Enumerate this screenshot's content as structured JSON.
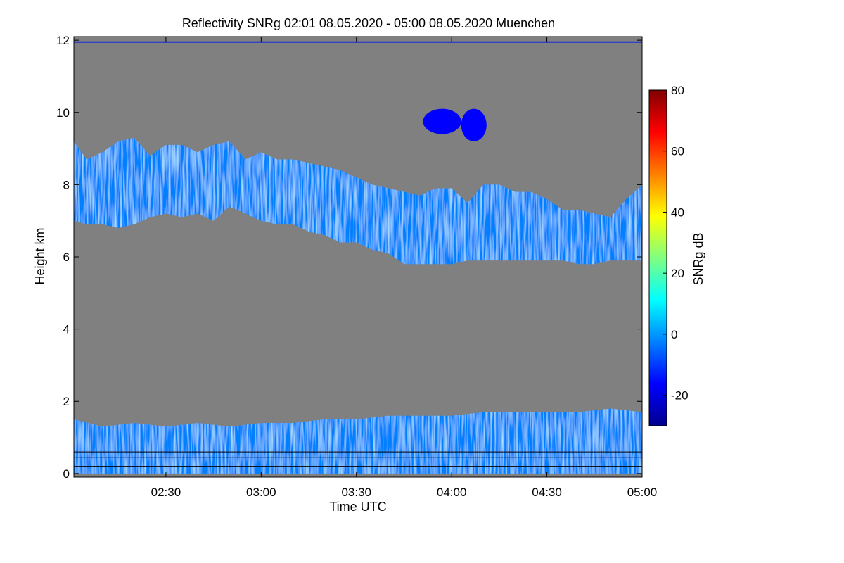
{
  "chart_data": {
    "type": "heatmap",
    "title": "Reflectivity SNRg   02:01 08.05.2020 - 05:00 08.05.2020 Muenchen",
    "xlabel": "Time UTC",
    "ylabel": "Height km",
    "x_range": [
      "02:01",
      "05:00"
    ],
    "xlim_minutes": [
      121,
      300
    ],
    "x_ticks": [
      {
        "label": "02:30",
        "minutes": 150
      },
      {
        "label": "03:00",
        "minutes": 180
      },
      {
        "label": "03:30",
        "minutes": 210
      },
      {
        "label": "04:00",
        "minutes": 240
      },
      {
        "label": "04:30",
        "minutes": 270
      },
      {
        "label": "05:00",
        "minutes": 300
      }
    ],
    "ylim": [
      -0.1,
      12.1
    ],
    "y_ticks": [
      0,
      2,
      4,
      6,
      8,
      10,
      12
    ],
    "background_color": "#808080",
    "colorbar": {
      "label": "SNRg dB",
      "range": [
        -30,
        80
      ],
      "ticks": [
        -20,
        0,
        20,
        40,
        60,
        80
      ],
      "colormap": [
        "#00008f",
        "#0000ff",
        "#0080ff",
        "#00ffff",
        "#80ff80",
        "#ffff00",
        "#ff8000",
        "#ff0000",
        "#800000"
      ]
    },
    "features": [
      {
        "name": "mid-level cloud layer",
        "snr_db": -5,
        "top_km": [
          [
            121,
            9.2
          ],
          [
            125,
            8.7
          ],
          [
            130,
            8.9
          ],
          [
            135,
            9.2
          ],
          [
            140,
            9.3
          ],
          [
            145,
            8.8
          ],
          [
            150,
            9.1
          ],
          [
            155,
            9.1
          ],
          [
            160,
            8.9
          ],
          [
            165,
            9.1
          ],
          [
            170,
            9.2
          ],
          [
            175,
            8.7
          ],
          [
            180,
            8.9
          ],
          [
            185,
            8.7
          ],
          [
            190,
            8.7
          ],
          [
            195,
            8.6
          ],
          [
            200,
            8.5
          ],
          [
            205,
            8.4
          ],
          [
            210,
            8.2
          ],
          [
            215,
            8.0
          ],
          [
            220,
            7.9
          ],
          [
            225,
            7.8
          ],
          [
            230,
            7.7
          ],
          [
            235,
            7.9
          ],
          [
            240,
            7.9
          ],
          [
            245,
            7.5
          ],
          [
            250,
            8.0
          ],
          [
            255,
            8.0
          ],
          [
            260,
            7.8
          ],
          [
            265,
            7.8
          ],
          [
            270,
            7.6
          ],
          [
            275,
            7.3
          ],
          [
            280,
            7.3
          ],
          [
            285,
            7.2
          ],
          [
            290,
            7.1
          ],
          [
            295,
            7.6
          ],
          [
            300,
            8.0
          ]
        ],
        "base_km": [
          [
            121,
            7.0
          ],
          [
            125,
            6.9
          ],
          [
            130,
            6.9
          ],
          [
            135,
            6.8
          ],
          [
            140,
            6.9
          ],
          [
            145,
            7.1
          ],
          [
            150,
            7.2
          ],
          [
            155,
            7.1
          ],
          [
            160,
            7.2
          ],
          [
            165,
            7.0
          ],
          [
            170,
            7.4
          ],
          [
            175,
            7.2
          ],
          [
            180,
            7.0
          ],
          [
            185,
            6.9
          ],
          [
            190,
            6.9
          ],
          [
            195,
            6.7
          ],
          [
            200,
            6.6
          ],
          [
            205,
            6.4
          ],
          [
            210,
            6.4
          ],
          [
            215,
            6.2
          ],
          [
            220,
            6.1
          ],
          [
            225,
            5.8
          ],
          [
            230,
            5.8
          ],
          [
            235,
            5.8
          ],
          [
            240,
            5.8
          ],
          [
            245,
            5.9
          ],
          [
            250,
            5.9
          ],
          [
            255,
            5.9
          ],
          [
            260,
            5.9
          ],
          [
            265,
            5.9
          ],
          [
            270,
            5.9
          ],
          [
            275,
            5.9
          ],
          [
            280,
            5.8
          ],
          [
            285,
            5.8
          ],
          [
            290,
            5.9
          ],
          [
            295,
            5.9
          ],
          [
            300,
            5.9
          ]
        ]
      },
      {
        "name": "upper cloud patch 1",
        "snr_db": -18,
        "time_min": [
          231,
          243
        ],
        "height_km": [
          9.4,
          10.1
        ]
      },
      {
        "name": "upper cloud patch 2",
        "snr_db": -20,
        "time_min": [
          243,
          251
        ],
        "height_km": [
          9.2,
          10.1
        ]
      },
      {
        "name": "boundary layer echoes",
        "snr_db": 0,
        "top_km": [
          [
            121,
            1.5
          ],
          [
            130,
            1.3
          ],
          [
            140,
            1.4
          ],
          [
            150,
            1.3
          ],
          [
            160,
            1.4
          ],
          [
            170,
            1.3
          ],
          [
            180,
            1.4
          ],
          [
            190,
            1.4
          ],
          [
            200,
            1.5
          ],
          [
            210,
            1.5
          ],
          [
            220,
            1.6
          ],
          [
            230,
            1.6
          ],
          [
            240,
            1.6
          ],
          [
            250,
            1.7
          ],
          [
            260,
            1.7
          ],
          [
            270,
            1.7
          ],
          [
            280,
            1.7
          ],
          [
            290,
            1.8
          ],
          [
            300,
            1.7
          ]
        ],
        "base_km": 0.0
      }
    ],
    "calibration_lines_km": [
      0.2,
      0.45,
      0.6
    ],
    "top_artifact_km": 11.95
  }
}
